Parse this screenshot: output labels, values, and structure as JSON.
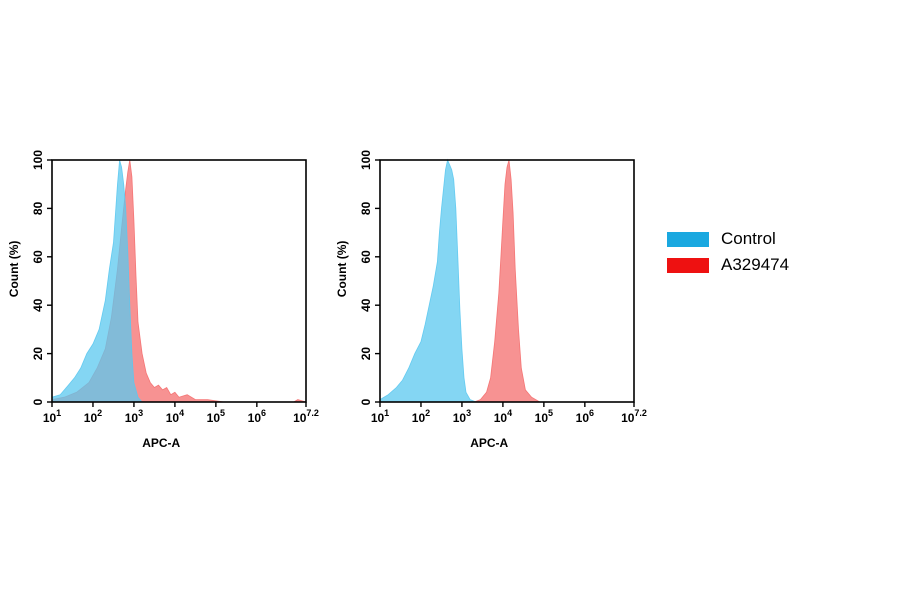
{
  "chart_data": [
    {
      "type": "area",
      "xlabel": "APC-A",
      "ylabel": "Count  (%)",
      "xscale": "log",
      "xlim": [
        1,
        7.2
      ],
      "ylim": [
        0,
        100
      ],
      "yticks": [
        0,
        20,
        40,
        60,
        80,
        100
      ],
      "xticks": [
        {
          "value": 1,
          "base": "10",
          "exp": "1"
        },
        {
          "value": 2,
          "base": "10",
          "exp": "2"
        },
        {
          "value": 3,
          "base": "10",
          "exp": "3"
        },
        {
          "value": 4,
          "base": "10",
          "exp": "4"
        },
        {
          "value": 5,
          "base": "10",
          "exp": "5"
        },
        {
          "value": 6,
          "base": "10",
          "exp": "6"
        },
        {
          "value": 7.2,
          "base": "10",
          "exp": "7.2"
        }
      ],
      "series": [
        {
          "name": "A329474",
          "color": "#f46e6e",
          "points": [
            [
              1.0,
              1
            ],
            [
              1.3,
              2
            ],
            [
              1.6,
              4
            ],
            [
              1.9,
              8
            ],
            [
              2.1,
              14
            ],
            [
              2.3,
              22
            ],
            [
              2.45,
              35
            ],
            [
              2.6,
              55
            ],
            [
              2.7,
              72
            ],
            [
              2.8,
              88
            ],
            [
              2.85,
              95
            ],
            [
              2.9,
              100
            ],
            [
              2.95,
              93
            ],
            [
              3.0,
              75
            ],
            [
              3.05,
              52
            ],
            [
              3.1,
              33
            ],
            [
              3.2,
              20
            ],
            [
              3.3,
              12
            ],
            [
              3.4,
              8
            ],
            [
              3.5,
              6
            ],
            [
              3.6,
              7
            ],
            [
              3.7,
              5
            ],
            [
              3.8,
              6
            ],
            [
              3.9,
              3
            ],
            [
              4.0,
              4
            ],
            [
              4.1,
              2
            ],
            [
              4.3,
              3
            ],
            [
              4.5,
              1
            ],
            [
              4.8,
              1
            ],
            [
              5.2,
              0
            ],
            [
              6.0,
              0
            ],
            [
              6.9,
              0
            ],
            [
              7.0,
              1
            ],
            [
              7.2,
              0
            ]
          ]
        },
        {
          "name": "Control",
          "color": "#5bc8ef",
          "points": [
            [
              1.0,
              2
            ],
            [
              1.2,
              3
            ],
            [
              1.4,
              7
            ],
            [
              1.55,
              10
            ],
            [
              1.7,
              14
            ],
            [
              1.85,
              20
            ],
            [
              2.0,
              24
            ],
            [
              2.15,
              30
            ],
            [
              2.3,
              42
            ],
            [
              2.4,
              55
            ],
            [
              2.5,
              66
            ],
            [
              2.55,
              78
            ],
            [
              2.6,
              90
            ],
            [
              2.65,
              100
            ],
            [
              2.7,
              97
            ],
            [
              2.75,
              90
            ],
            [
              2.8,
              80
            ],
            [
              2.85,
              62
            ],
            [
              2.9,
              40
            ],
            [
              2.95,
              20
            ],
            [
              3.0,
              8
            ],
            [
              3.1,
              2
            ],
            [
              3.2,
              0
            ],
            [
              7.2,
              0
            ]
          ]
        }
      ]
    },
    {
      "type": "area",
      "xlabel": "APC-A",
      "ylabel": "Count  (%)",
      "xscale": "log",
      "xlim": [
        1,
        7.2
      ],
      "ylim": [
        0,
        100
      ],
      "yticks": [
        0,
        20,
        40,
        60,
        80,
        100
      ],
      "xticks": [
        {
          "value": 1,
          "base": "10",
          "exp": "1"
        },
        {
          "value": 2,
          "base": "10",
          "exp": "2"
        },
        {
          "value": 3,
          "base": "10",
          "exp": "3"
        },
        {
          "value": 4,
          "base": "10",
          "exp": "4"
        },
        {
          "value": 5,
          "base": "10",
          "exp": "5"
        },
        {
          "value": 6,
          "base": "10",
          "exp": "6"
        },
        {
          "value": 7.2,
          "base": "10",
          "exp": "7.2"
        }
      ],
      "series": [
        {
          "name": "A329474",
          "color": "#f46e6e",
          "points": [
            [
              1.0,
              0
            ],
            [
              3.3,
              0
            ],
            [
              3.45,
              1
            ],
            [
              3.6,
              4
            ],
            [
              3.7,
              10
            ],
            [
              3.8,
              25
            ],
            [
              3.9,
              45
            ],
            [
              3.95,
              60
            ],
            [
              4.0,
              75
            ],
            [
              4.05,
              90
            ],
            [
              4.1,
              97
            ],
            [
              4.15,
              100
            ],
            [
              4.2,
              92
            ],
            [
              4.25,
              78
            ],
            [
              4.3,
              55
            ],
            [
              4.38,
              30
            ],
            [
              4.45,
              14
            ],
            [
              4.55,
              5
            ],
            [
              4.7,
              2
            ],
            [
              4.9,
              0
            ],
            [
              7.2,
              0
            ]
          ]
        },
        {
          "name": "Control",
          "color": "#5bc8ef",
          "points": [
            [
              1.0,
              1
            ],
            [
              1.2,
              3
            ],
            [
              1.4,
              6
            ],
            [
              1.55,
              9
            ],
            [
              1.7,
              14
            ],
            [
              1.85,
              20
            ],
            [
              2.0,
              25
            ],
            [
              2.1,
              32
            ],
            [
              2.2,
              40
            ],
            [
              2.3,
              48
            ],
            [
              2.4,
              58
            ],
            [
              2.45,
              70
            ],
            [
              2.5,
              80
            ],
            [
              2.55,
              88
            ],
            [
              2.6,
              96
            ],
            [
              2.65,
              100
            ],
            [
              2.7,
              98
            ],
            [
              2.75,
              96
            ],
            [
              2.8,
              92
            ],
            [
              2.85,
              80
            ],
            [
              2.9,
              60
            ],
            [
              2.95,
              38
            ],
            [
              3.0,
              22
            ],
            [
              3.05,
              10
            ],
            [
              3.1,
              4
            ],
            [
              3.2,
              1
            ],
            [
              3.35,
              0
            ],
            [
              7.2,
              0
            ]
          ]
        }
      ]
    }
  ],
  "legend": {
    "placement": "right",
    "items": [
      {
        "label": "Control",
        "color": "#1aa8e0"
      },
      {
        "label": "A329474",
        "color": "#ee1111"
      }
    ]
  }
}
